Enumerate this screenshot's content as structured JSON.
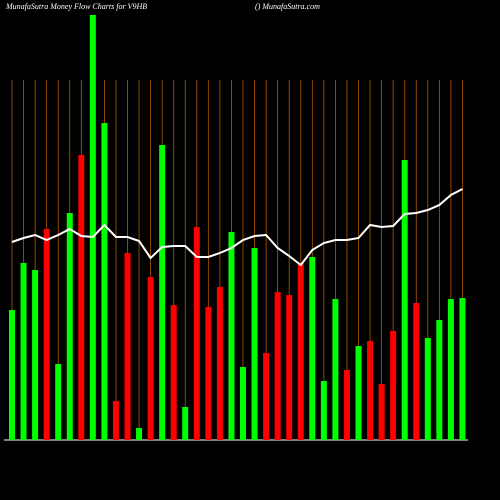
{
  "chart_data": {
    "type": "bar",
    "title": "MunafaSutra  Money Flow  Charts for V9HB",
    "subtitle": "() MunafaSutra.com",
    "values": [
      130,
      177,
      170,
      211,
      76,
      227,
      285,
      425,
      317,
      39,
      187,
      12,
      163,
      295,
      135,
      33,
      213,
      133,
      153,
      208,
      73,
      192,
      87,
      148,
      145,
      177,
      183,
      59,
      141,
      70,
      94,
      99,
      56,
      109,
      280,
      137,
      102,
      120,
      141,
      142
    ],
    "colors": [
      "#00ff00",
      "#00ff00",
      "#00ff00",
      "#ff0000",
      "#00ff00",
      "#00ff00",
      "#ff0000",
      "#00ff00",
      "#00ff00",
      "#ff0000",
      "#ff0000",
      "#00ff00",
      "#ff0000",
      "#00ff00",
      "#ff0000",
      "#00ff00",
      "#ff0000",
      "#ff0000",
      "#ff0000",
      "#00ff00",
      "#00ff00",
      "#00ff00",
      "#ff0000",
      "#ff0000",
      "#ff0000",
      "#ff0000",
      "#00ff00",
      "#00ff00",
      "#00ff00",
      "#ff0000",
      "#00ff00",
      "#ff0000",
      "#ff0000",
      "#ff0000",
      "#00ff00",
      "#ff0000",
      "#00ff00",
      "#00ff00",
      "#00ff00",
      "#00ff00"
    ],
    "line_values": [
      198,
      202,
      205,
      200,
      205,
      211,
      204,
      203,
      215,
      203,
      203,
      199,
      182,
      193,
      194,
      194,
      183,
      183,
      187,
      192,
      200,
      204,
      205,
      192,
      184,
      175,
      190,
      197,
      200,
      200,
      202,
      215,
      213,
      214,
      226,
      227,
      230,
      235,
      245,
      251
    ],
    "line_color": "#ffffff",
    "ylim": [
      0,
      425
    ]
  }
}
